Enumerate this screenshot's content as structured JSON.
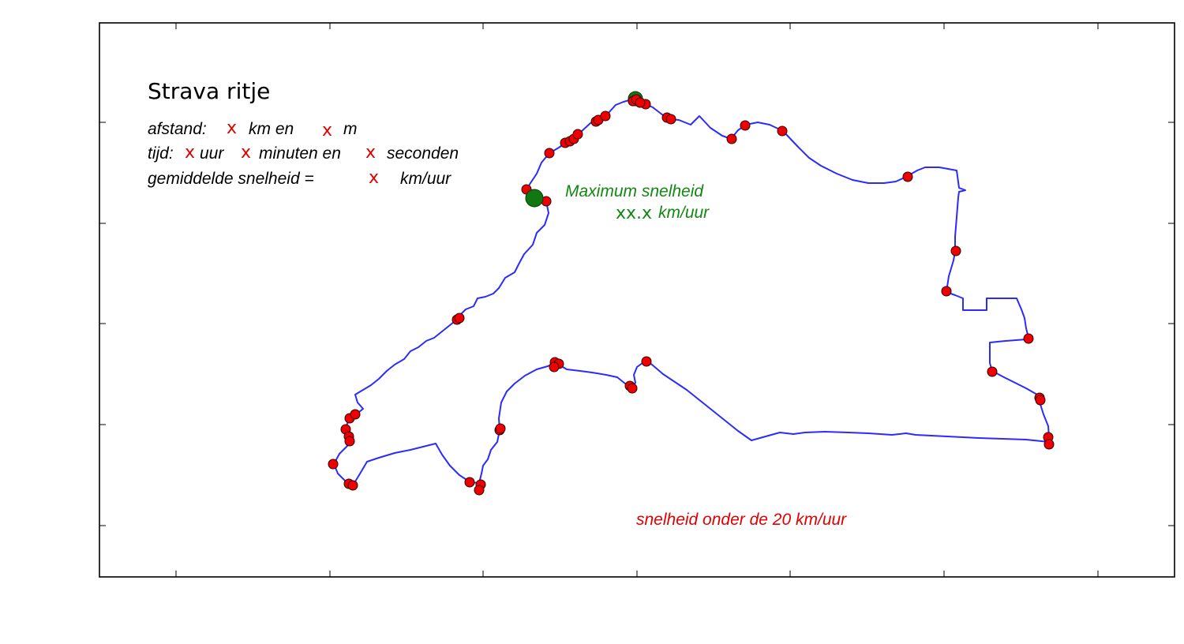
{
  "chart_data": {
    "type": "route-map",
    "title": "Strava ritje",
    "xlabel": "",
    "ylabel": "",
    "grid": false,
    "axis_tick_labels": false,
    "info_lines": [
      {
        "segments": [
          "afstand:",
          "x",
          "km en",
          "x",
          "m"
        ]
      },
      {
        "segments": [
          "tijd:",
          "x",
          "uur",
          "x",
          "minuten en",
          "x",
          "seconden"
        ]
      },
      {
        "segments": [
          "gemiddelde snelheid =",
          "x",
          "km/uur"
        ]
      }
    ],
    "max_speed": {
      "label": "Maximum snelheid",
      "value": "xx.x",
      "unit": "km/uur"
    },
    "slow_label": "snelheid onder de 20 km/uur",
    "colors": {
      "route": "#2b2bff",
      "slow_points": "#ee0000",
      "max_points": "#117711",
      "placeholder": "#e00000",
      "max_text": "#118811"
    }
  }
}
